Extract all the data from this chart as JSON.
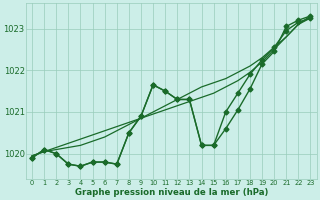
{
  "xlabel": "Graphe pression niveau de la mer (hPa)",
  "xlim": [
    -0.5,
    23.5
  ],
  "ylim": [
    1019.4,
    1023.6
  ],
  "yticks": [
    1020,
    1021,
    1022,
    1023
  ],
  "xticks": [
    0,
    1,
    2,
    3,
    4,
    5,
    6,
    7,
    8,
    9,
    10,
    11,
    12,
    13,
    14,
    15,
    16,
    17,
    18,
    19,
    20,
    21,
    22,
    23
  ],
  "bg_color": "#cceee8",
  "grid_color": "#99ccbb",
  "line_color": "#1a6b2a",
  "series_zigzag1": [
    1019.9,
    1020.1,
    1020.0,
    1019.75,
    1019.7,
    1019.8,
    1019.8,
    1019.75,
    1020.5,
    1020.9,
    1021.65,
    1021.5,
    1021.3,
    1021.3,
    1020.2,
    1020.2,
    1020.6,
    1021.05,
    1021.55,
    1022.15,
    1022.45,
    1023.05,
    1023.2,
    1023.3
  ],
  "series_zigzag2": [
    1019.9,
    1020.1,
    1020.0,
    1019.75,
    1019.7,
    1019.8,
    1019.8,
    1019.75,
    1020.5,
    1020.9,
    1021.65,
    1021.5,
    1021.3,
    1021.3,
    1020.2,
    1020.2,
    1021.0,
    1021.45,
    1021.9,
    1022.25,
    1022.55,
    1022.95,
    1023.15,
    1023.25
  ],
  "series_straight1": [
    1019.95,
    1020.05,
    1020.15,
    1020.25,
    1020.35,
    1020.45,
    1020.55,
    1020.65,
    1020.75,
    1020.85,
    1020.95,
    1021.05,
    1021.15,
    1021.25,
    1021.35,
    1021.45,
    1021.6,
    1021.75,
    1021.95,
    1022.2,
    1022.5,
    1022.8,
    1023.1,
    1023.3
  ],
  "series_straight2": [
    1019.95,
    1020.05,
    1020.1,
    1020.15,
    1020.2,
    1020.3,
    1020.4,
    1020.55,
    1020.7,
    1020.85,
    1021.0,
    1021.15,
    1021.3,
    1021.45,
    1021.6,
    1021.7,
    1021.8,
    1021.95,
    1022.1,
    1022.3,
    1022.55,
    1022.8,
    1023.1,
    1023.25
  ]
}
